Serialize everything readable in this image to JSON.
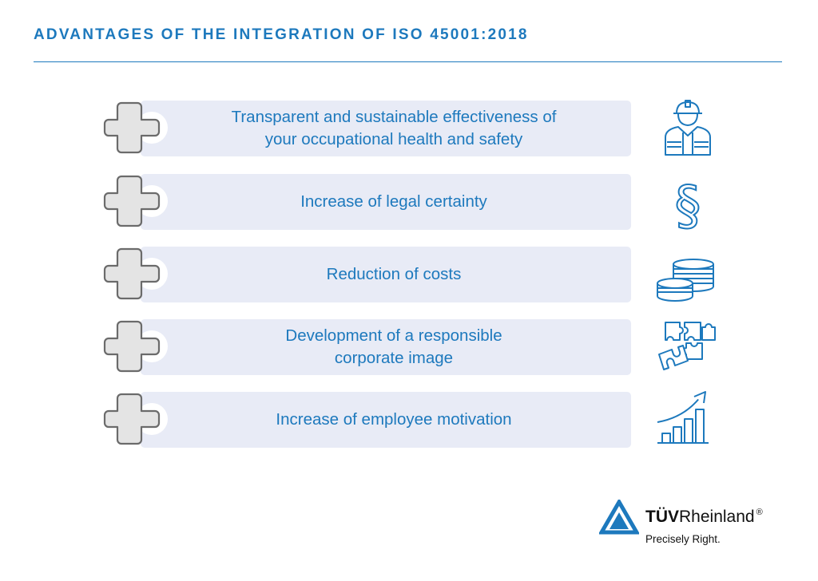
{
  "header": {
    "title": "ADVANTAGES OF THE INTEGRATION OF ISO 45001:2018"
  },
  "advantages": [
    {
      "text": "Transparent and sustainable effectiveness of\nyour occupational health and safety",
      "icon": "worker-helmet-vest-icon"
    },
    {
      "text": "Increase of legal certainty",
      "icon": "paragraph-sign-icon"
    },
    {
      "text": "Reduction of costs",
      "icon": "coin-stacks-icon"
    },
    {
      "text": "Development of a responsible\ncorporate image",
      "icon": "puzzle-pieces-icon"
    },
    {
      "text": "Increase of employee motivation",
      "icon": "rising-bar-chart-icon"
    }
  ],
  "logo": {
    "brand_bold": "TÜV",
    "brand_regular": "Rheinland",
    "registered": "®",
    "tagline": "Precisely Right."
  },
  "colors": {
    "accent": "#1d79bd",
    "row_background": "#e8ebf6",
    "plus_fill": "#e4e4e4",
    "plus_stroke": "#6b6b6b"
  }
}
